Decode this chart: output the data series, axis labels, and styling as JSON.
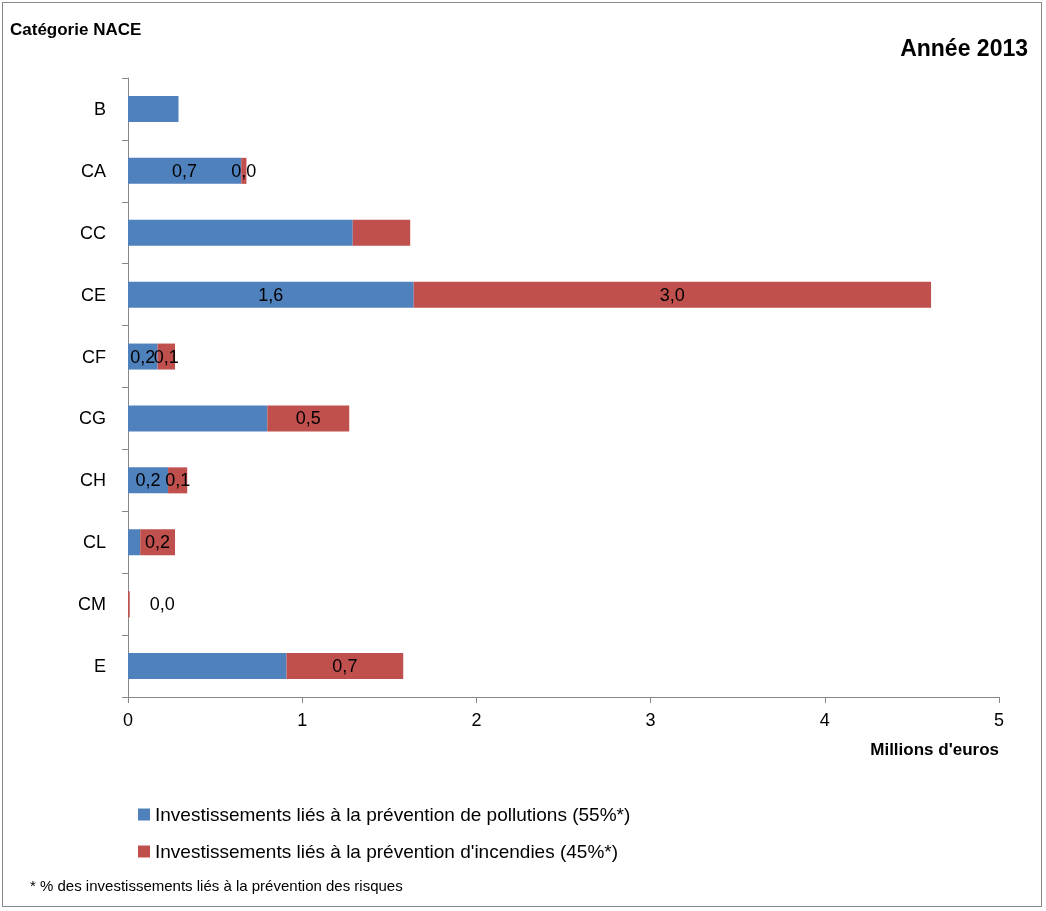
{
  "chart_data": {
    "type": "bar",
    "orientation": "horizontal",
    "stacked": true,
    "title": "Année 2013",
    "ylabel": "Catégorie NACE",
    "xlabel": "Millions d'euros",
    "categories": [
      "B",
      "CA",
      "CC",
      "CE",
      "CF",
      "CG",
      "CH",
      "CL",
      "CM",
      "E"
    ],
    "series": [
      {
        "name": "Investissements liés à la prévention de pollutions (55%*)",
        "color": "#4f81bd",
        "values": [
          0.29,
          0.65,
          1.29,
          1.64,
          0.17,
          0.8,
          0.23,
          0.07,
          null,
          0.91
        ],
        "value_labels": [
          null,
          "0,7",
          null,
          "1,6",
          "0,2",
          null,
          "0,2",
          null,
          null,
          null
        ]
      },
      {
        "name": "Investissements liés à la prévention d'incendies (45%*)",
        "color": "#c0504d",
        "values": [
          0,
          0.03,
          0.33,
          2.97,
          0.1,
          0.47,
          0.11,
          0.2,
          0.01,
          0.67
        ],
        "value_labels": [
          null,
          "0,0",
          null,
          "3,0",
          "0,1",
          "0,5",
          "0,1",
          "0,2",
          "0,0",
          "0,7"
        ]
      }
    ],
    "xlim": [
      0,
      5
    ],
    "xticks": [
      0,
      1,
      2,
      3,
      4,
      5
    ],
    "grid": false,
    "legend": "bottom",
    "annotations": [
      "* % des investissements liés à la prévention des risques"
    ]
  }
}
